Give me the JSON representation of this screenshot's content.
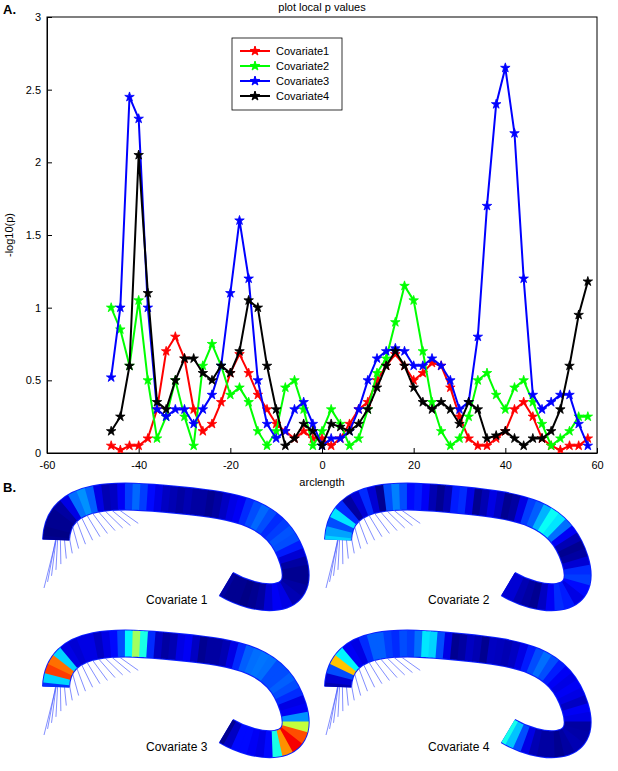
{
  "chart_data": {
    "type": "line",
    "title": "plot local p values",
    "x_label": "arclength",
    "y_label": "-log10(p)",
    "x": [
      -46,
      -44,
      -42,
      -40,
      -38,
      -36,
      -34,
      -32,
      -30,
      -28,
      -26,
      -24,
      -22,
      -20,
      -18,
      -16,
      -14,
      -12,
      -10,
      -8,
      -6,
      -4,
      -2,
      0,
      2,
      4,
      6,
      8,
      10,
      12,
      14,
      16,
      18,
      20,
      22,
      24,
      26,
      28,
      30,
      32,
      34,
      36,
      38,
      40,
      42,
      44,
      46,
      48,
      50,
      52,
      54,
      56,
      58
    ],
    "series": [
      {
        "name": "Covariate1",
        "color": "#ff0000",
        "marker": "star",
        "values": [
          0.05,
          0.02,
          0.05,
          0.05,
          0.1,
          0.3,
          0.7,
          0.8,
          0.65,
          0.3,
          0.15,
          0.2,
          0.35,
          0.55,
          0.68,
          0.55,
          0.4,
          0.3,
          0.2,
          0.15,
          0.1,
          0.15,
          0.1,
          0.1,
          0.05,
          0.1,
          0.2,
          0.3,
          0.35,
          0.5,
          0.6,
          0.68,
          0.6,
          0.5,
          0.55,
          0.62,
          0.6,
          0.45,
          0.25,
          0.1,
          0.05,
          0.05,
          0.1,
          0.15,
          0.3,
          0.35,
          0.25,
          0.1,
          0.05,
          0.02,
          0.05,
          0.05,
          0.1
        ]
      },
      {
        "name": "Covariate2",
        "color": "#00ff00",
        "marker": "star",
        "values": [
          1.0,
          0.85,
          0.6,
          1.05,
          0.5,
          0.1,
          0.25,
          0.5,
          0.25,
          0.05,
          0.6,
          0.75,
          0.6,
          0.4,
          0.45,
          0.35,
          0.15,
          0.05,
          0.15,
          0.45,
          0.5,
          0.3,
          0.05,
          0.15,
          0.3,
          0.2,
          0.05,
          0.1,
          0.3,
          0.55,
          0.65,
          0.9,
          1.15,
          1.05,
          0.7,
          0.35,
          0.15,
          0.05,
          0.1,
          0.25,
          0.5,
          0.55,
          0.4,
          0.3,
          0.45,
          0.5,
          0.35,
          0.2,
          0.05,
          0.1,
          0.15,
          0.25,
          0.25
        ]
      },
      {
        "name": "Covariate3",
        "color": "#0000ff",
        "marker": "star",
        "values": [
          0.52,
          1.0,
          2.45,
          2.3,
          1.0,
          0.3,
          0.25,
          0.3,
          0.3,
          0.2,
          0.3,
          0.4,
          0.6,
          1.1,
          1.6,
          1.2,
          0.5,
          0.2,
          0.1,
          0.15,
          0.3,
          0.35,
          0.2,
          0.05,
          0.1,
          0.1,
          0.15,
          0.3,
          0.5,
          0.65,
          0.7,
          0.72,
          0.7,
          0.6,
          0.6,
          0.65,
          0.6,
          0.5,
          0.3,
          0.35,
          0.8,
          1.7,
          2.4,
          2.65,
          2.2,
          1.2,
          0.4,
          0.3,
          0.35,
          0.4,
          0.4,
          0.2,
          0.05
        ]
      },
      {
        "name": "Covariate4",
        "color": "#000000",
        "marker": "star",
        "values": [
          0.15,
          0.25,
          0.6,
          2.05,
          1.1,
          0.35,
          0.3,
          0.5,
          0.65,
          0.65,
          0.55,
          0.5,
          0.6,
          0.55,
          0.7,
          1.05,
          1.0,
          0.6,
          0.3,
          0.05,
          0.1,
          0.2,
          0.15,
          0.05,
          0.2,
          0.18,
          0.15,
          0.2,
          0.3,
          0.45,
          0.6,
          0.7,
          0.6,
          0.45,
          0.35,
          0.3,
          0.35,
          0.3,
          0.2,
          0.35,
          0.3,
          0.1,
          0.12,
          0.15,
          0.1,
          0.05,
          0.1,
          0.1,
          0.15,
          0.3,
          0.6,
          0.95,
          1.18
        ]
      }
    ],
    "xlim": [
      -60,
      60
    ],
    "xticks": [
      -60,
      -40,
      -20,
      0,
      20,
      40,
      60
    ],
    "ylim": [
      0,
      3
    ],
    "yticks": [
      0,
      0.5,
      1,
      1.5,
      2,
      2.5,
      3
    ],
    "grid": false,
    "legend": "top"
  },
  "figure": {
    "panel_labels": [
      "A.",
      "B."
    ],
    "tract_captions": [
      "Covariate 1",
      "Covariate 2",
      "Covariate 3",
      "Covariate 4"
    ]
  }
}
